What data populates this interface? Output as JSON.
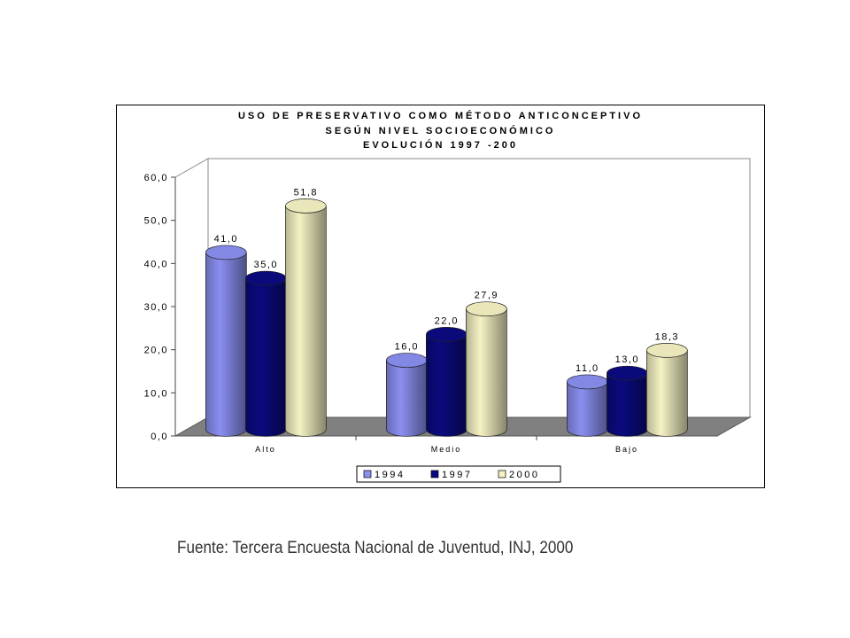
{
  "chart_data": {
    "type": "bar",
    "title": [
      "USO DE PRESERVATIVO COMO MÉTODO ANTICONCEPTIVO",
      "SEGÚN NIVEL SOCIOECONÓMICO",
      "EVOLUCIÓN 1997 -200"
    ],
    "categories": [
      "Alto",
      "Medio",
      "Bajo"
    ],
    "series": [
      {
        "name": "1994",
        "values": [
          41.0,
          16.0,
          11.0
        ],
        "labels": [
          "41,0",
          "16,0",
          "11,0"
        ],
        "color": "#8a8ff0"
      },
      {
        "name": "1997",
        "values": [
          35.0,
          22.0,
          13.0
        ],
        "labels": [
          "35,0",
          "22,0",
          "13,0"
        ],
        "color": "#0a0a80"
      },
      {
        "name": "2000",
        "values": [
          51.8,
          27.9,
          18.3
        ],
        "labels": [
          "51,8",
          "27,9",
          "18,3"
        ],
        "color": "#f5f2c4"
      }
    ],
    "yticks": [
      "0,0",
      "10,0",
      "20,0",
      "30,0",
      "40,0",
      "50,0",
      "60,0"
    ],
    "ylim": [
      0,
      60
    ],
    "xlabel": "",
    "ylabel": "",
    "legend_position": "bottom",
    "style": "3d-cylinder"
  },
  "source": "Fuente: Tercera Encuesta Nacional de Juventud, INJ, 2000"
}
